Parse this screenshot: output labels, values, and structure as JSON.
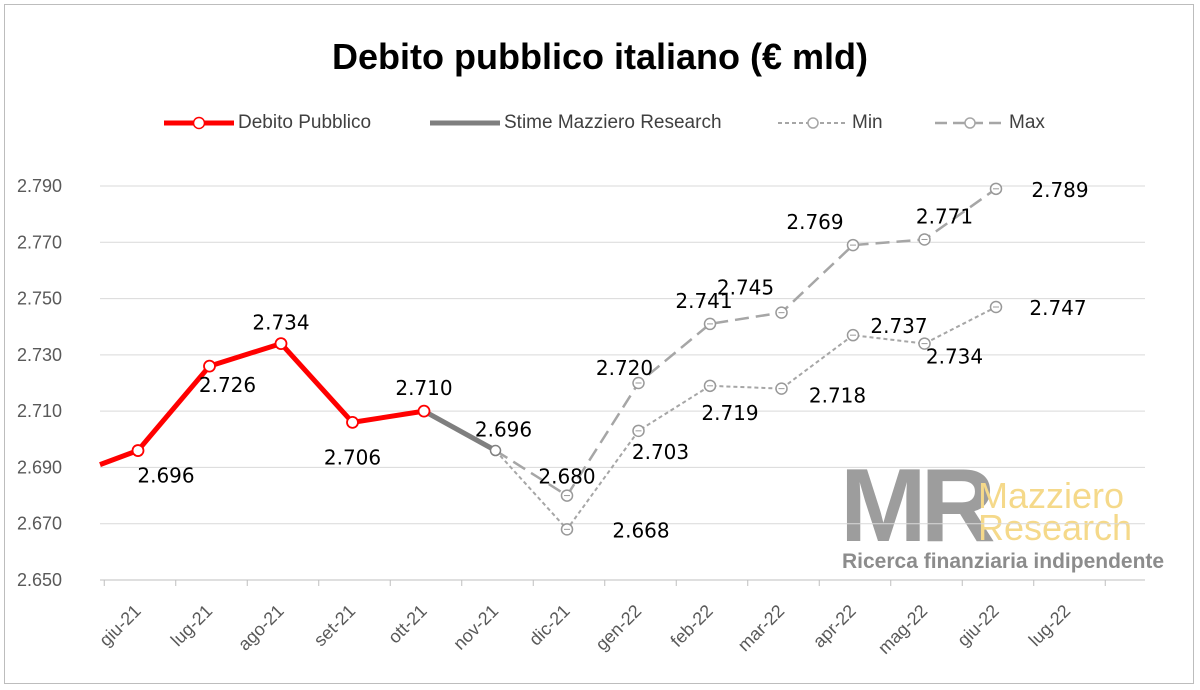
{
  "colors": {
    "actual": "#ff0000",
    "estimate": "#7f7f7f",
    "min": "#a6a6a6",
    "max": "#a6a6a6",
    "grid": "#d9d9d9",
    "axis": "#bfbfbf"
  },
  "logo": {
    "letters": "MR",
    "line1": "Mazziero",
    "line2": "Research",
    "tagline": "Ricerca finanziaria indipendente"
  },
  "chart_data": {
    "type": "line",
    "title": "Debito pubblico italiano (€ mld)",
    "categories": [
      "giu-21",
      "lug-21",
      "ago-21",
      "set-21",
      "ott-21",
      "nov-21",
      "dic-21",
      "gen-22",
      "feb-22",
      "mar-22",
      "apr-22",
      "mag-22",
      "giu-22",
      "lug-22"
    ],
    "ylim": [
      2650,
      2790
    ],
    "yticks": [
      "2.650",
      "2.670",
      "2.690",
      "2.710",
      "2.730",
      "2.750",
      "2.770",
      "2.790"
    ],
    "grid": true,
    "legend_position": "top",
    "start_value": 2691,
    "series": [
      {
        "name": "Debito Pubblico",
        "style": "actual",
        "values": [
          2696,
          2726,
          2734,
          2706,
          2710,
          null,
          null,
          null,
          null,
          null,
          null,
          null,
          null,
          null
        ],
        "labels": [
          "2.696",
          "2.726",
          "2.734",
          "2.706",
          "2.710"
        ]
      },
      {
        "name": "Stime Mazziero Research",
        "style": "estimate",
        "values": [
          null,
          null,
          null,
          null,
          2710,
          2696,
          null,
          null,
          null,
          null,
          null,
          null,
          null,
          null
        ],
        "labels": [
          "2.696"
        ]
      },
      {
        "name": "Min",
        "style": "min",
        "values": [
          null,
          null,
          null,
          null,
          null,
          2696,
          2668,
          2703,
          2719,
          2718,
          2737,
          2734,
          2747,
          null
        ],
        "labels": [
          "2.668",
          "2.703",
          "2.719",
          "2.718",
          "2.737",
          "2.734",
          "2.747"
        ]
      },
      {
        "name": "Max",
        "style": "max",
        "values": [
          null,
          null,
          null,
          null,
          null,
          2696,
          2680,
          2720,
          2741,
          2745,
          2769,
          2771,
          2789,
          null
        ],
        "labels": [
          "2.680",
          "2.720",
          "2.741",
          "2.745",
          "2.769",
          "2.771",
          "2.789"
        ]
      }
    ]
  }
}
